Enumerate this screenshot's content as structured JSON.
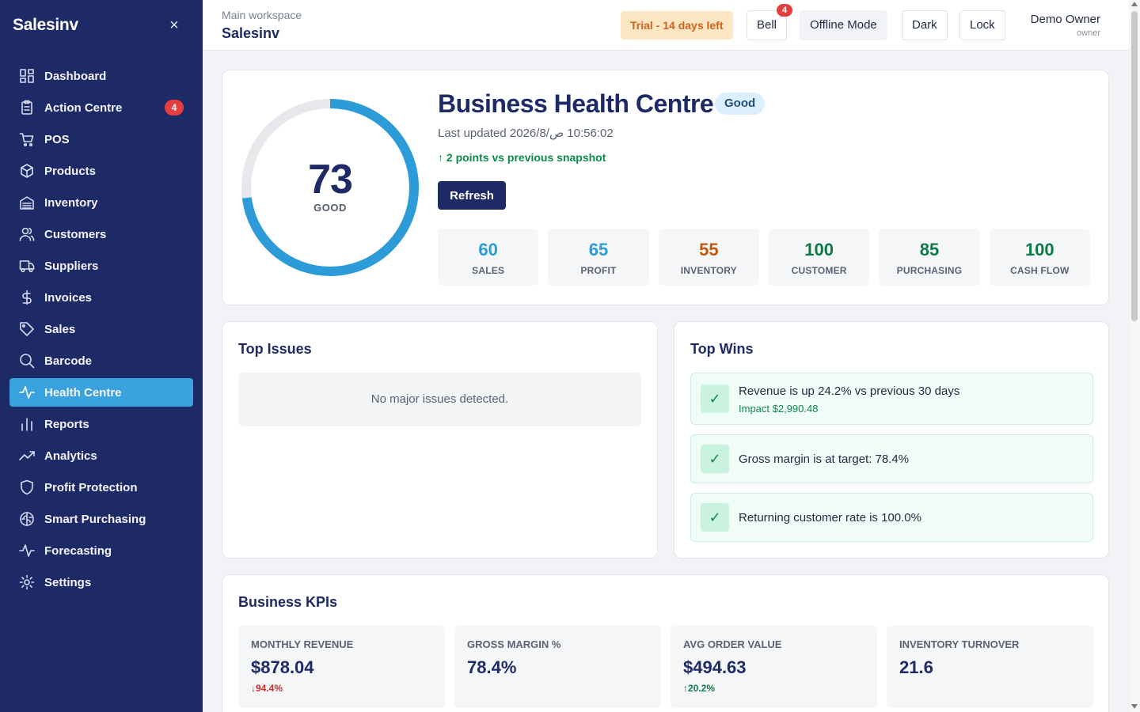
{
  "sidebar": {
    "brand": "Salesinv",
    "close_icon": "×",
    "items": [
      {
        "label": "Dashboard",
        "icon": "dashboard-icon"
      },
      {
        "label": "Action Centre",
        "icon": "clipboard-icon",
        "badge": "4"
      },
      {
        "label": "POS",
        "icon": "cart-icon"
      },
      {
        "label": "Products",
        "icon": "box-icon"
      },
      {
        "label": "Inventory",
        "icon": "warehouse-icon"
      },
      {
        "label": "Customers",
        "icon": "users-icon"
      },
      {
        "label": "Suppliers",
        "icon": "truck-icon"
      },
      {
        "label": "Invoices",
        "icon": "dollar-icon"
      },
      {
        "label": "Sales",
        "icon": "tag-icon"
      },
      {
        "label": "Barcode",
        "icon": "search-icon"
      },
      {
        "label": "Health Centre",
        "icon": "pulse-icon",
        "active": true
      },
      {
        "label": "Reports",
        "icon": "bar-chart-icon"
      },
      {
        "label": "Analytics",
        "icon": "trend-icon"
      },
      {
        "label": "Profit Protection",
        "icon": "shield-icon"
      },
      {
        "label": "Smart Purchasing",
        "icon": "brain-icon"
      },
      {
        "label": "Forecasting",
        "icon": "forecast-icon"
      },
      {
        "label": "Settings",
        "icon": "gear-icon"
      }
    ]
  },
  "header": {
    "workspace_label": "Main workspace",
    "workspace_name": "Salesinv",
    "trial": "Trial - 14 days left",
    "bell": "Bell",
    "bell_badge": "4",
    "offline": "Offline Mode",
    "dark": "Dark",
    "lock": "Lock",
    "user_name": "Demo Owner",
    "user_role": "owner"
  },
  "health": {
    "title": "Business Health Centre",
    "status": "Good",
    "score": "73",
    "score_fraction": 0.73,
    "score_label": "GOOD",
    "last_updated": "Last updated 2026/8/‏ 10:56:02 ص",
    "delta": "↑ 2 points vs previous snapshot",
    "refresh": "Refresh",
    "subscores": [
      {
        "value": "60",
        "label": "SALES",
        "color": "#2d9bd8"
      },
      {
        "value": "65",
        "label": "PROFIT",
        "color": "#2d9bd8"
      },
      {
        "value": "55",
        "label": "INVENTORY",
        "color": "#c2570c"
      },
      {
        "value": "100",
        "label": "CUSTOMER",
        "color": "#0c7a47"
      },
      {
        "value": "85",
        "label": "PURCHASING",
        "color": "#0c7a47"
      },
      {
        "value": "100",
        "label": "CASH FLOW",
        "color": "#0c7a47"
      }
    ]
  },
  "issues": {
    "title": "Top Issues",
    "empty": "No major issues detected."
  },
  "wins": {
    "title": "Top Wins",
    "items": [
      {
        "text": "Revenue is up 24.2% vs previous 30 days",
        "impact": "Impact $2,990.48"
      },
      {
        "text": "Gross margin is at target: 78.4%"
      },
      {
        "text": "Returning customer rate is 100.0%"
      }
    ]
  },
  "kpis": {
    "title": "Business KPIs",
    "items": [
      {
        "label": "MONTHLY REVENUE",
        "value": "$878.04",
        "delta": "↓94.4%",
        "delta_color": "#c53030"
      },
      {
        "label": "GROSS MARGIN %",
        "value": "78.4%"
      },
      {
        "label": "AVG ORDER VALUE",
        "value": "$494.63",
        "delta": "↑20.2%",
        "delta_color": "#0c7a47"
      },
      {
        "label": "INVENTORY TURNOVER",
        "value": "21.6"
      }
    ]
  },
  "colors": {
    "sidebar_bg": "#1e2a66",
    "accent": "#3aa2de",
    "gauge_track": "#e6e8ec",
    "gauge_fill": "#2d9bd8"
  }
}
